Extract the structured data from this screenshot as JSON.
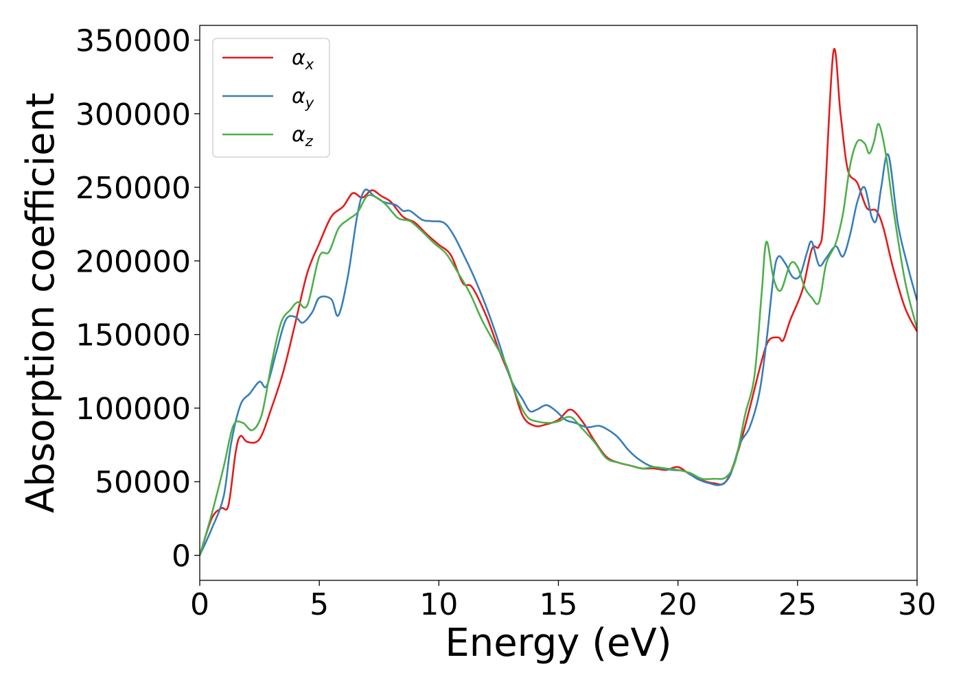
{
  "chart_data": {
    "type": "line",
    "title": "",
    "xlabel": "Energy (eV)",
    "ylabel": "Absorption coefficient",
    "xlim": [
      0,
      30
    ],
    "ylim": [
      -17000,
      360000
    ],
    "xticks": [
      "0",
      "5",
      "10",
      "15",
      "20",
      "25",
      "30"
    ],
    "yticks": [
      "0",
      "50000",
      "100000",
      "150000",
      "200000",
      "250000",
      "300000",
      "350000"
    ],
    "grid": false,
    "legend_position": "top-left",
    "series": [
      {
        "name": "αx",
        "symbol": "α",
        "subscript": "x",
        "color": "#e41a1c",
        "points": [
          [
            0,
            0
          ],
          [
            0.5,
            25000
          ],
          [
            0.9,
            32000
          ],
          [
            1.2,
            34000
          ],
          [
            1.5,
            70000
          ],
          [
            1.7,
            81000
          ],
          [
            2.0,
            77000
          ],
          [
            2.5,
            79000
          ],
          [
            3.0,
            100000
          ],
          [
            3.5,
            125000
          ],
          [
            4.0,
            158000
          ],
          [
            4.5,
            192000
          ],
          [
            5.0,
            212000
          ],
          [
            5.5,
            230000
          ],
          [
            6.0,
            237000
          ],
          [
            6.4,
            246000
          ],
          [
            6.8,
            243000
          ],
          [
            7.2,
            248000
          ],
          [
            7.6,
            244000
          ],
          [
            8.0,
            240000
          ],
          [
            8.5,
            230000
          ],
          [
            9.0,
            226000
          ],
          [
            9.5,
            218000
          ],
          [
            10.0,
            211000
          ],
          [
            10.5,
            204000
          ],
          [
            11.0,
            185000
          ],
          [
            11.4,
            182000
          ],
          [
            12.0,
            162000
          ],
          [
            12.5,
            140000
          ],
          [
            13.0,
            120000
          ],
          [
            13.5,
            95000
          ],
          [
            14.0,
            88000
          ],
          [
            14.5,
            89000
          ],
          [
            15.0,
            92000
          ],
          [
            15.5,
            99000
          ],
          [
            16.0,
            91000
          ],
          [
            16.5,
            78000
          ],
          [
            17.0,
            67000
          ],
          [
            17.5,
            63000
          ],
          [
            18.0,
            61000
          ],
          [
            18.5,
            59000
          ],
          [
            19.0,
            59000
          ],
          [
            19.5,
            58000
          ],
          [
            20.0,
            60000
          ],
          [
            20.5,
            55000
          ],
          [
            21.0,
            51000
          ],
          [
            21.5,
            49000
          ],
          [
            22.0,
            50000
          ],
          [
            22.5,
            70000
          ],
          [
            23.0,
            100000
          ],
          [
            23.5,
            132000
          ],
          [
            23.8,
            146000
          ],
          [
            24.2,
            148000
          ],
          [
            24.4,
            146000
          ],
          [
            24.7,
            160000
          ],
          [
            25.2,
            180000
          ],
          [
            25.6,
            208000
          ],
          [
            25.9,
            210000
          ],
          [
            26.1,
            230000
          ],
          [
            26.5,
            342000
          ],
          [
            26.8,
            300000
          ],
          [
            27.1,
            262000
          ],
          [
            27.5,
            253000
          ],
          [
            27.9,
            236000
          ],
          [
            28.3,
            234000
          ],
          [
            28.6,
            222000
          ],
          [
            29.0,
            195000
          ],
          [
            29.5,
            168000
          ],
          [
            30.0,
            152000
          ]
        ]
      },
      {
        "name": "αy",
        "symbol": "α",
        "subscript": "y",
        "color": "#377eb8",
        "points": [
          [
            0,
            0
          ],
          [
            0.5,
            18000
          ],
          [
            1.0,
            40000
          ],
          [
            1.3,
            75000
          ],
          [
            1.7,
            102000
          ],
          [
            2.1,
            110000
          ],
          [
            2.5,
            118000
          ],
          [
            2.8,
            115000
          ],
          [
            3.2,
            138000
          ],
          [
            3.6,
            160000
          ],
          [
            4.0,
            162000
          ],
          [
            4.3,
            158000
          ],
          [
            4.7,
            165000
          ],
          [
            5.0,
            175000
          ],
          [
            5.5,
            174000
          ],
          [
            5.8,
            163000
          ],
          [
            6.2,
            190000
          ],
          [
            6.6,
            232000
          ],
          [
            6.9,
            248000
          ],
          [
            7.3,
            244000
          ],
          [
            7.7,
            240000
          ],
          [
            8.2,
            238000
          ],
          [
            8.5,
            234000
          ],
          [
            8.8,
            234000
          ],
          [
            9.3,
            228000
          ],
          [
            9.7,
            227000
          ],
          [
            10.2,
            226000
          ],
          [
            10.6,
            218000
          ],
          [
            11.1,
            202000
          ],
          [
            11.5,
            188000
          ],
          [
            12.0,
            168000
          ],
          [
            12.5,
            145000
          ],
          [
            13.0,
            120000
          ],
          [
            13.5,
            106000
          ],
          [
            13.8,
            98000
          ],
          [
            14.1,
            99000
          ],
          [
            14.5,
            102000
          ],
          [
            14.9,
            98000
          ],
          [
            15.3,
            92000
          ],
          [
            15.7,
            90000
          ],
          [
            16.2,
            87000
          ],
          [
            16.7,
            88000
          ],
          [
            17.1,
            85000
          ],
          [
            17.5,
            80000
          ],
          [
            17.9,
            72000
          ],
          [
            18.3,
            66000
          ],
          [
            18.8,
            61000
          ],
          [
            19.3,
            59000
          ],
          [
            19.8,
            58000
          ],
          [
            20.3,
            57000
          ],
          [
            20.8,
            52000
          ],
          [
            21.3,
            49000
          ],
          [
            21.8,
            48000
          ],
          [
            22.2,
            55000
          ],
          [
            22.6,
            76000
          ],
          [
            23.0,
            87000
          ],
          [
            23.4,
            110000
          ],
          [
            23.7,
            145000
          ],
          [
            24.0,
            190000
          ],
          [
            24.2,
            203000
          ],
          [
            24.5,
            198000
          ],
          [
            24.8,
            189000
          ],
          [
            25.1,
            190000
          ],
          [
            25.4,
            206000
          ],
          [
            25.6,
            213000
          ],
          [
            25.9,
            197000
          ],
          [
            26.2,
            202000
          ],
          [
            26.6,
            210000
          ],
          [
            26.9,
            203000
          ],
          [
            27.2,
            218000
          ],
          [
            27.5,
            240000
          ],
          [
            27.8,
            250000
          ],
          [
            28.1,
            230000
          ],
          [
            28.3,
            228000
          ],
          [
            28.5,
            250000
          ],
          [
            28.8,
            272000
          ],
          [
            29.2,
            225000
          ],
          [
            29.6,
            197000
          ],
          [
            30.0,
            173000
          ]
        ]
      },
      {
        "name": "αz",
        "symbol": "α",
        "subscript": "z",
        "color": "#4daf4a",
        "points": [
          [
            0,
            0
          ],
          [
            0.5,
            28000
          ],
          [
            1.0,
            60000
          ],
          [
            1.4,
            88000
          ],
          [
            1.8,
            90000
          ],
          [
            2.2,
            85000
          ],
          [
            2.6,
            96000
          ],
          [
            3.0,
            130000
          ],
          [
            3.4,
            158000
          ],
          [
            3.8,
            167000
          ],
          [
            4.1,
            172000
          ],
          [
            4.5,
            170000
          ],
          [
            5.0,
            203000
          ],
          [
            5.4,
            206000
          ],
          [
            5.8,
            222000
          ],
          [
            6.2,
            228000
          ],
          [
            6.6,
            233000
          ],
          [
            7.0,
            244000
          ],
          [
            7.4,
            243000
          ],
          [
            7.8,
            238000
          ],
          [
            8.3,
            229000
          ],
          [
            8.8,
            227000
          ],
          [
            9.3,
            220000
          ],
          [
            9.8,
            212000
          ],
          [
            10.3,
            205000
          ],
          [
            10.8,
            192000
          ],
          [
            11.3,
            178000
          ],
          [
            11.8,
            160000
          ],
          [
            12.3,
            145000
          ],
          [
            12.8,
            130000
          ],
          [
            13.3,
            106000
          ],
          [
            13.7,
            94000
          ],
          [
            14.1,
            91000
          ],
          [
            14.6,
            90000
          ],
          [
            15.0,
            91000
          ],
          [
            15.5,
            94000
          ],
          [
            16.0,
            86000
          ],
          [
            16.5,
            77000
          ],
          [
            17.0,
            66000
          ],
          [
            17.5,
            63000
          ],
          [
            18.0,
            61000
          ],
          [
            18.5,
            59000
          ],
          [
            19.0,
            60000
          ],
          [
            19.5,
            59000
          ],
          [
            20.0,
            58000
          ],
          [
            20.5,
            56000
          ],
          [
            21.0,
            52000
          ],
          [
            21.5,
            52000
          ],
          [
            22.0,
            53000
          ],
          [
            22.4,
            64000
          ],
          [
            22.8,
            95000
          ],
          [
            23.2,
            122000
          ],
          [
            23.5,
            178000
          ],
          [
            23.7,
            213000
          ],
          [
            24.0,
            188000
          ],
          [
            24.3,
            180000
          ],
          [
            24.7,
            198000
          ],
          [
            25.0,
            196000
          ],
          [
            25.3,
            182000
          ],
          [
            25.6,
            175000
          ],
          [
            25.9,
            172000
          ],
          [
            26.2,
            198000
          ],
          [
            26.6,
            212000
          ],
          [
            26.9,
            232000
          ],
          [
            27.2,
            265000
          ],
          [
            27.5,
            281000
          ],
          [
            27.8,
            280000
          ],
          [
            28.0,
            273000
          ],
          [
            28.2,
            281000
          ],
          [
            28.4,
            293000
          ],
          [
            28.7,
            272000
          ],
          [
            29.0,
            236000
          ],
          [
            29.5,
            186000
          ],
          [
            30.0,
            154000
          ]
        ]
      }
    ]
  }
}
